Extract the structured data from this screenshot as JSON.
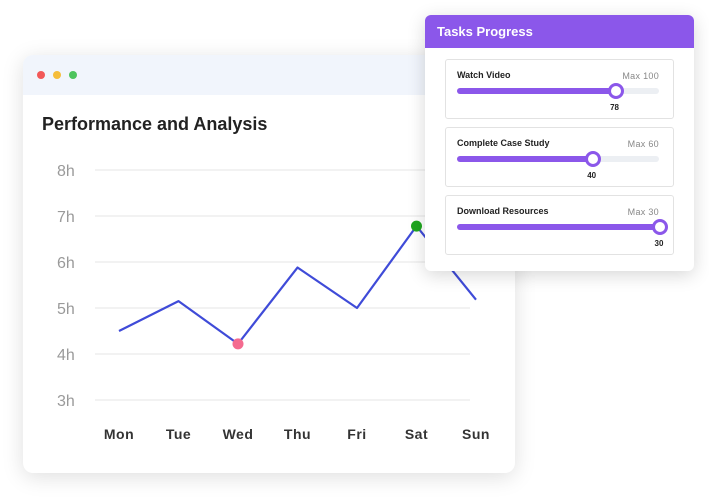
{
  "chart_data": {
    "type": "line",
    "title": "Performance and Analysis",
    "categories": [
      "Mon",
      "Tue",
      "Wed",
      "Thu",
      "Fri",
      "Sat",
      "Sun"
    ],
    "values": [
      4.5,
      5.15,
      4.22,
      5.88,
      5.0,
      6.78,
      5.18
    ],
    "y_ticks": [
      "8h",
      "7h",
      "6h",
      "5h",
      "4h",
      "3h"
    ],
    "ylim": [
      3,
      8
    ],
    "grid": true,
    "line_color": "#3f4bd8",
    "highlights": [
      {
        "category": "Wed",
        "color": "#f46b8f"
      },
      {
        "category": "Sat",
        "color": "#1fa61f"
      }
    ]
  },
  "window": {
    "controls": [
      "close",
      "minimize",
      "maximize"
    ],
    "control_colors": [
      "#f25858",
      "#f5bd3b",
      "#4dc45d"
    ]
  },
  "tasks": {
    "title": "Tasks Progress",
    "accent": "#8b57ea",
    "items": [
      {
        "name": "Watch Video",
        "max_label": "Max 100",
        "value": 78,
        "max": 100
      },
      {
        "name": "Complete Case Study",
        "max_label": "Max 60",
        "value": 40,
        "max": 60
      },
      {
        "name": "Download Resources",
        "max_label": "Max 30",
        "value": 30,
        "max": 30
      }
    ]
  }
}
